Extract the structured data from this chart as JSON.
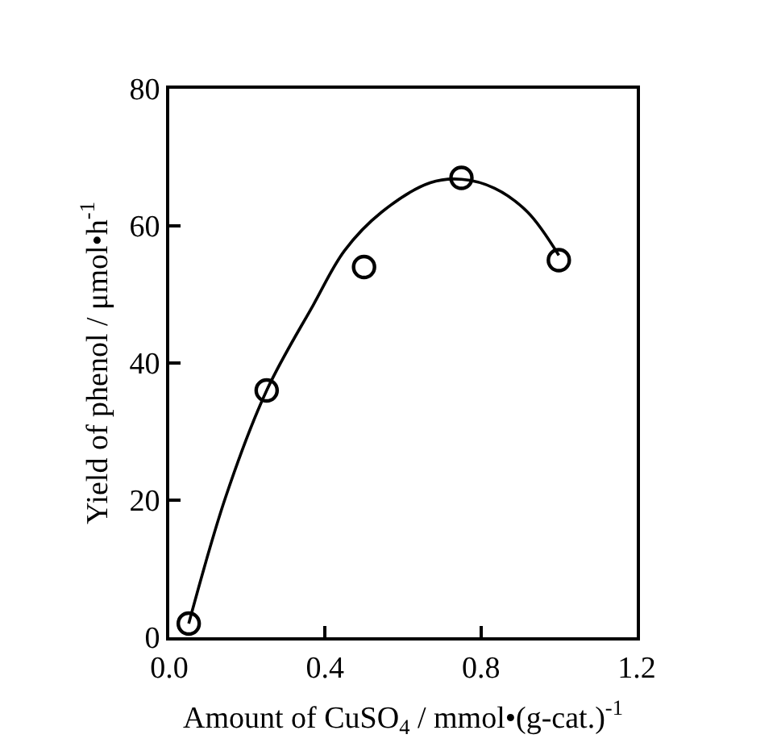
{
  "chart_data": {
    "type": "scatter",
    "xlabel": "Amount of CuSO$_{4}$ / mmol•(g-cat.)$^{-1}$",
    "ylabel": "Yield of phenol / μmol•h$^{-1}$",
    "xlim": [
      0,
      1.2
    ],
    "ylim": [
      0,
      80
    ],
    "xticks": [
      {
        "value": 0,
        "label": "0.0"
      },
      0.4,
      0.8,
      1.2
    ],
    "yticks": [
      0,
      20,
      40,
      60,
      80
    ],
    "marker": "circle",
    "series": [
      {
        "color": "#000000",
        "x": [
          0.05,
          0.25,
          0.5,
          0.75,
          1.0
        ],
        "values": [
          2,
          36,
          54,
          67,
          55
        ]
      },
      {
        "type": "line",
        "color": "#000000",
        "marker": "none",
        "line_style": "solid",
        "x": [
          0.05,
          0.145,
          0.25,
          0.37,
          0.45,
          0.545,
          0.67,
          0.75,
          0.835,
          0.92,
          1.0
        ],
        "values": [
          2,
          20.5,
          36,
          48.5,
          56.4,
          62,
          66.3,
          66.8,
          65.5,
          62,
          55.7
        ]
      }
    ]
  }
}
